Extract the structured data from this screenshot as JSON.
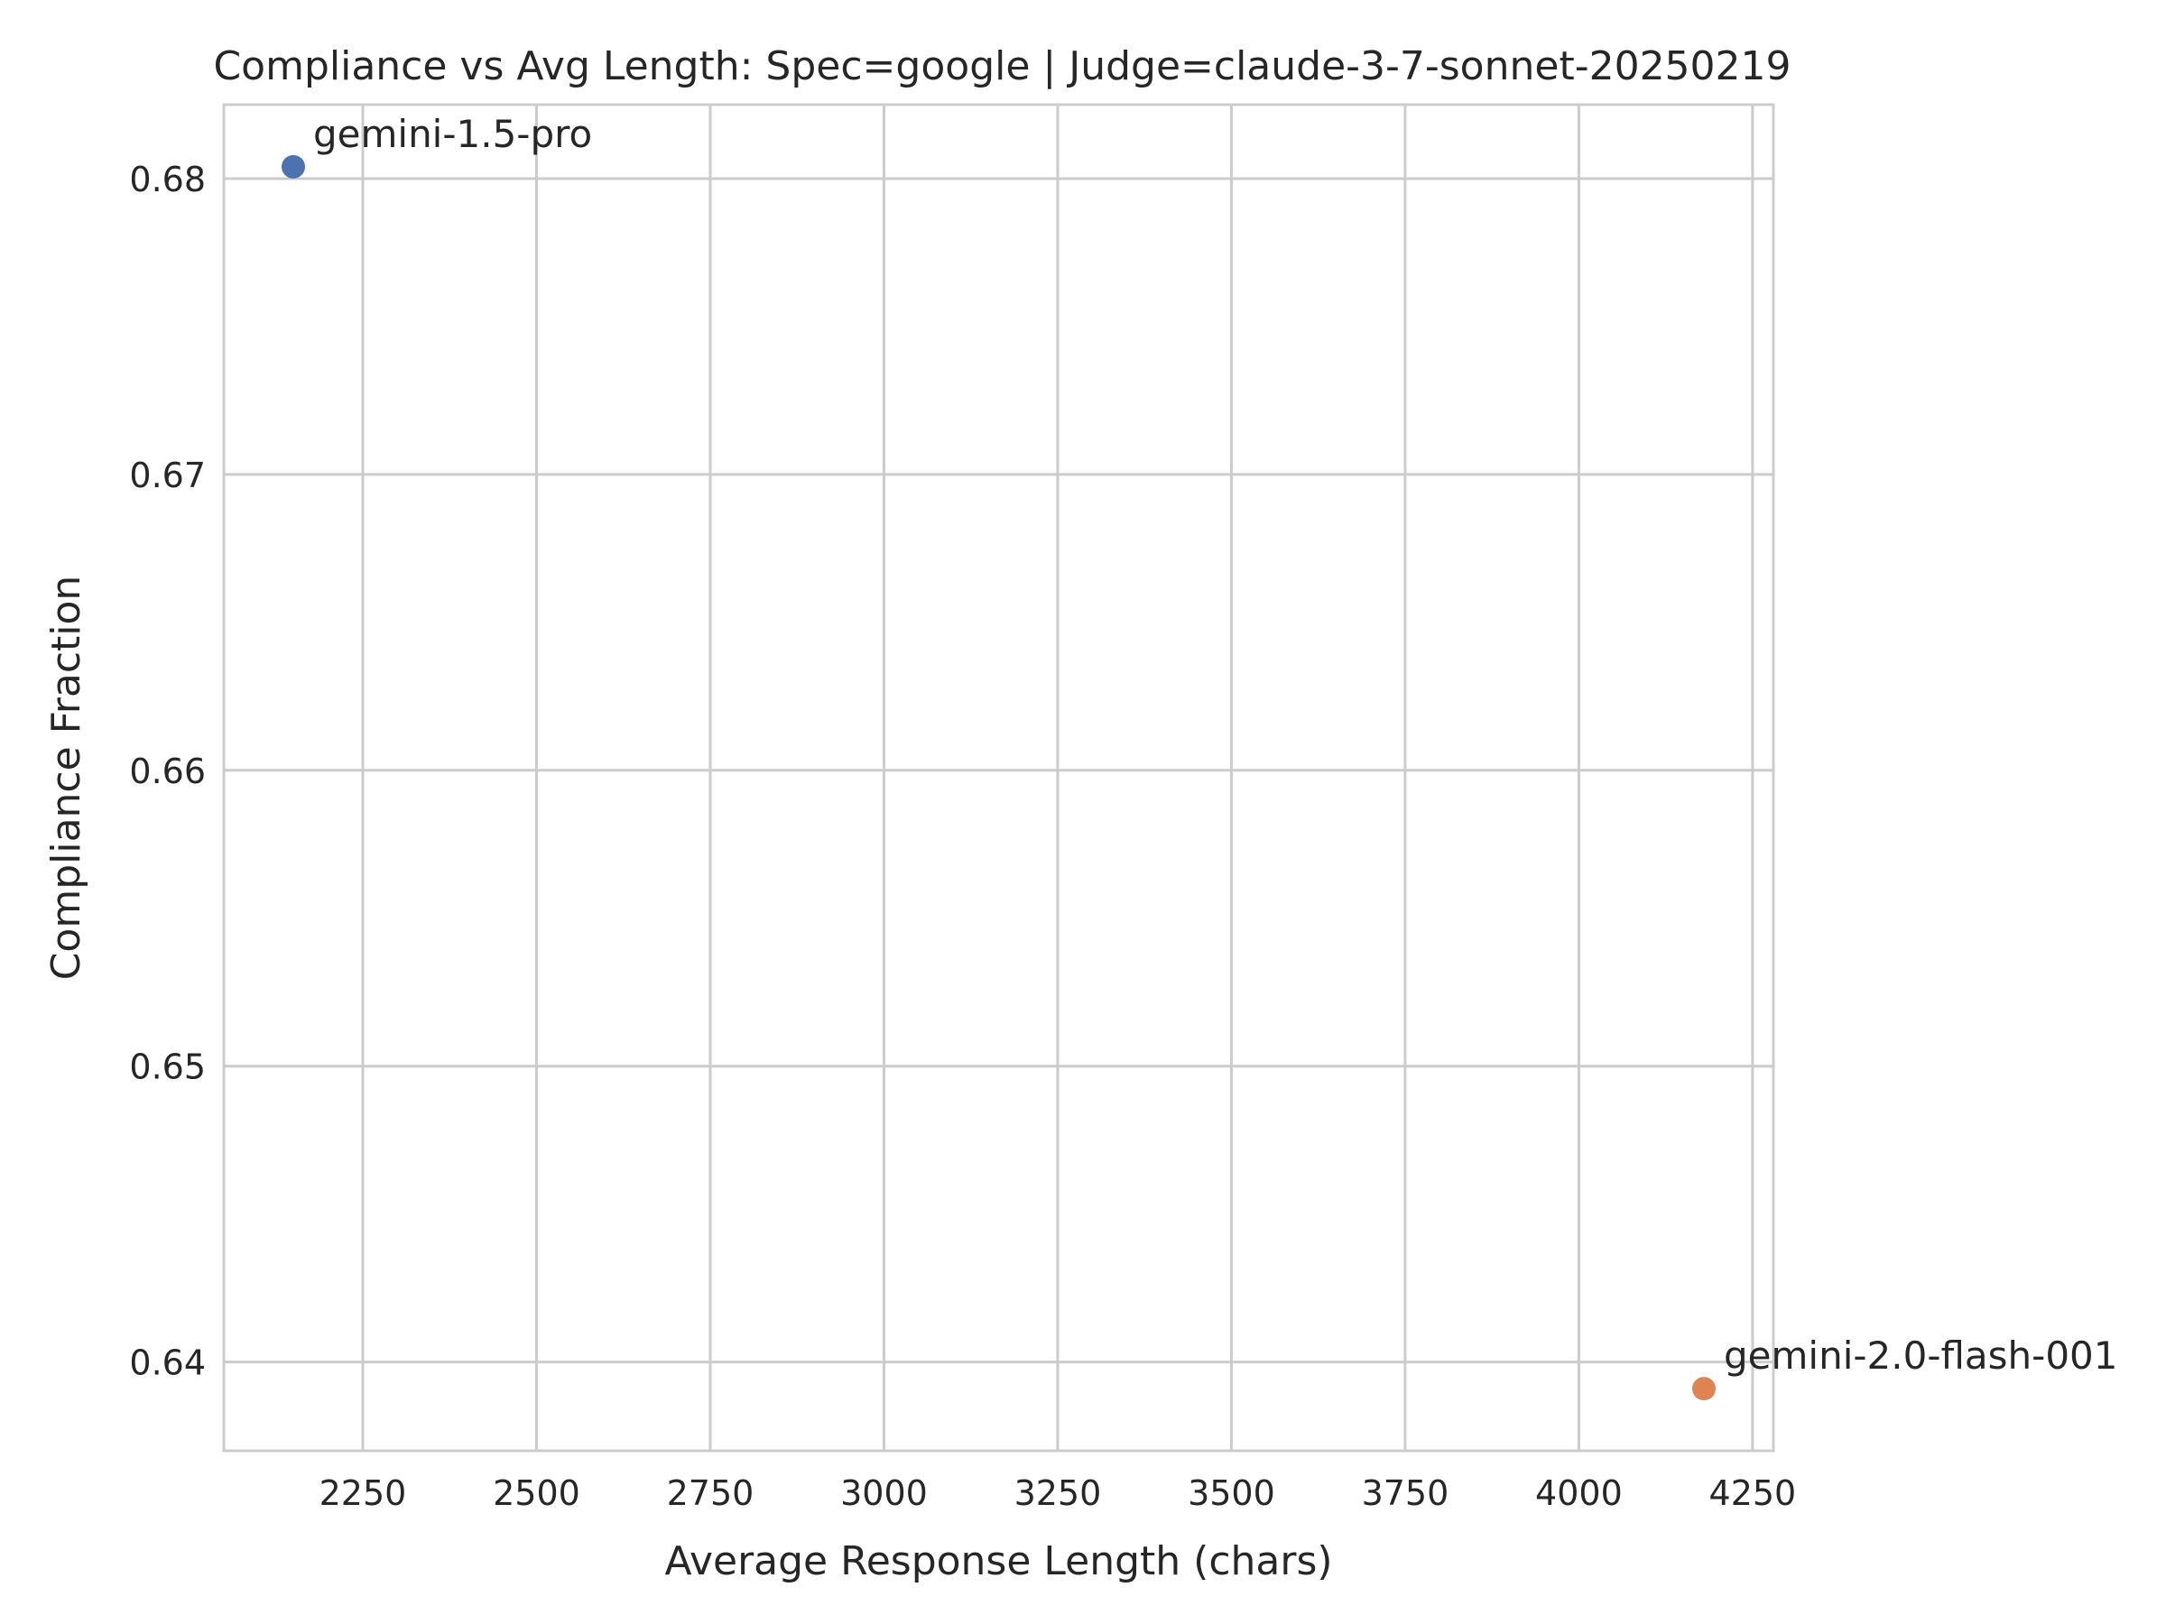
{
  "chart_data": {
    "type": "scatter",
    "title": "Compliance vs Avg Length: Spec=google | Judge=claude-3-7-sonnet-20250219",
    "xlabel": "Average Response Length (chars)",
    "ylabel": "Compliance Fraction",
    "xlim": [
      2050,
      4280
    ],
    "ylim": [
      0.637,
      0.6825
    ],
    "xticks": [
      2250,
      2500,
      2750,
      3000,
      3250,
      3500,
      3750,
      4000,
      4250
    ],
    "yticks": [
      0.64,
      0.65,
      0.66,
      0.67,
      0.68
    ],
    "xtick_labels": [
      "2250",
      "2500",
      "2750",
      "3000",
      "3250",
      "3500",
      "3750",
      "4000",
      "4250"
    ],
    "ytick_labels": [
      "0.64",
      "0.65",
      "0.66",
      "0.67",
      "0.68"
    ],
    "grid": true,
    "points": [
      {
        "label": "gemini-1.5-pro",
        "x": 2150,
        "y": 0.6804,
        "color": "#4c72b0"
      },
      {
        "label": "gemini-2.0-flash-001",
        "x": 4180,
        "y": 0.6391,
        "color": "#dd8452"
      }
    ]
  }
}
